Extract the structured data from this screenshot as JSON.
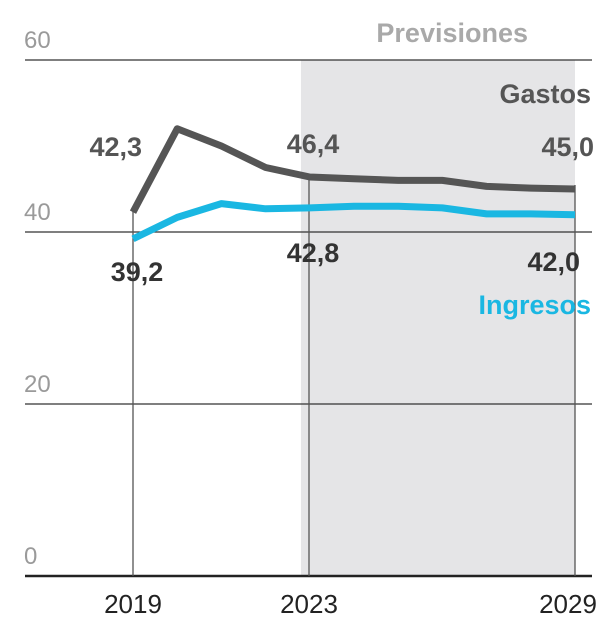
{
  "chart_data": {
    "type": "line",
    "ylim": [
      0,
      60
    ],
    "y_ticks": [
      "0",
      "20",
      "40",
      "60"
    ],
    "x_ticks": [
      "2019",
      "2023",
      "2029"
    ],
    "forecast_label": "Previsiones",
    "x": [
      2019,
      2020,
      2021,
      2022,
      2023,
      2024,
      2025,
      2026,
      2027,
      2028,
      2029
    ],
    "series": [
      {
        "name": "Gastos",
        "color": "#555555",
        "values": [
          42.3,
          52.0,
          50.0,
          47.5,
          46.4,
          46.2,
          46.0,
          46.0,
          45.3,
          45.1,
          45.0
        ]
      },
      {
        "name": "Ingresos",
        "color": "#1ab7e2",
        "values": [
          39.2,
          41.7,
          43.3,
          42.7,
          42.8,
          43.0,
          43.0,
          42.8,
          42.1,
          42.1,
          42.0
        ]
      }
    ],
    "annotations": [
      {
        "text": "42,3",
        "series": "Gastos",
        "x": 2019
      },
      {
        "text": "46,4",
        "series": "Gastos",
        "x": 2023
      },
      {
        "text": "45,0",
        "series": "Gastos",
        "x": 2029
      },
      {
        "text": "39,2",
        "series": "Ingresos",
        "x": 2019
      },
      {
        "text": "42,8",
        "series": "Ingresos",
        "x": 2023
      },
      {
        "text": "42,0",
        "series": "Ingresos",
        "x": 2029
      }
    ],
    "forecast_region": {
      "from_year": 2022.8,
      "to_year": 2029
    },
    "grid": true
  }
}
